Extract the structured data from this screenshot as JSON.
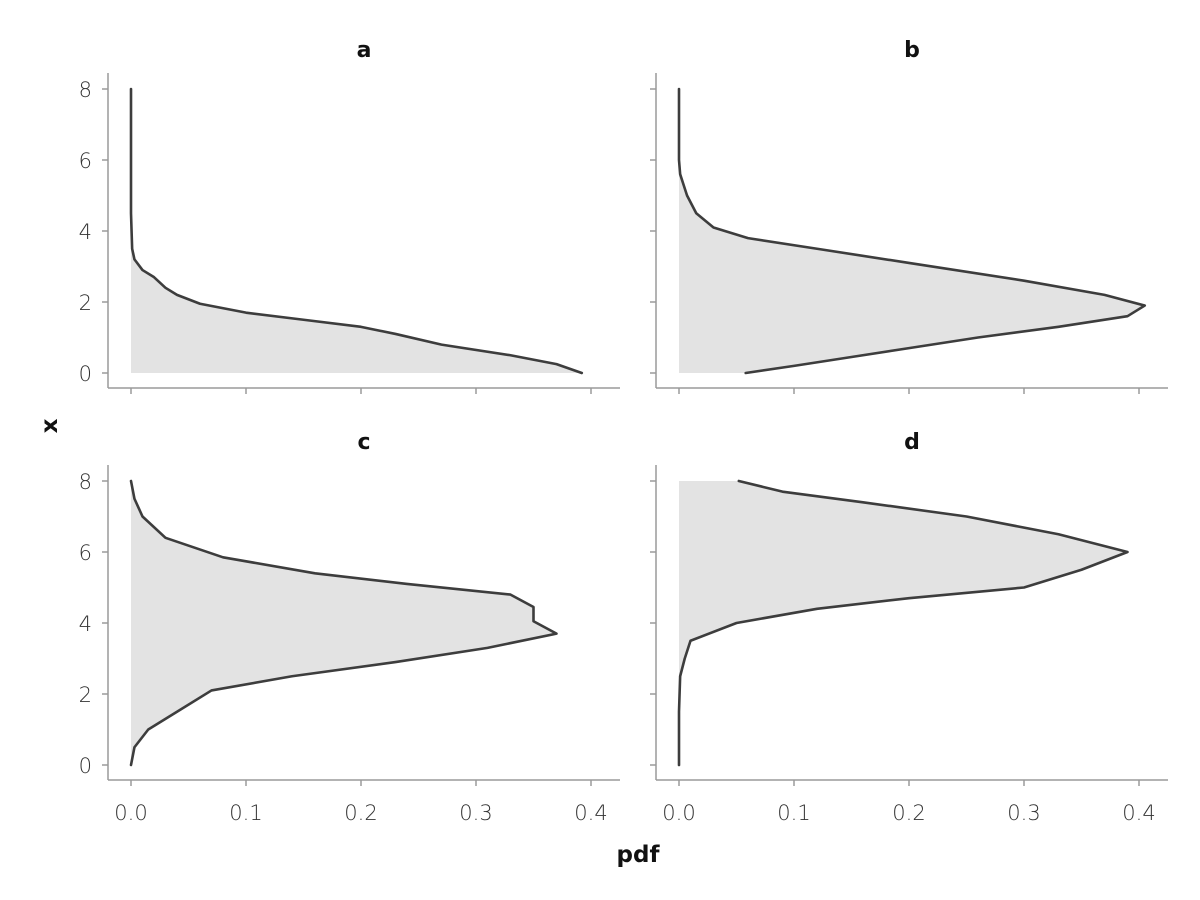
{
  "chart_data": {
    "type": "area",
    "orientation": "horizontal",
    "xlabel": "pdf",
    "ylabel": "x",
    "xlim": [
      0,
      0.4
    ],
    "ylim": [
      0,
      8
    ],
    "xticks": [
      "0.0",
      "0.1",
      "0.2",
      "0.3",
      "0.4"
    ],
    "yticks": [
      "0",
      "2",
      "4",
      "6",
      "8"
    ],
    "grid": false,
    "fill_color": "#e3e3e3",
    "line_color": "#3d3d3d",
    "panels": [
      {
        "title": "a",
        "points": [
          [
            0.392,
            0
          ],
          [
            0.37,
            0.25
          ],
          [
            0.33,
            0.5
          ],
          [
            0.27,
            0.8
          ],
          [
            0.23,
            1.1
          ],
          [
            0.2,
            1.3
          ],
          [
            0.15,
            1.5
          ],
          [
            0.1,
            1.7
          ],
          [
            0.06,
            1.95
          ],
          [
            0.04,
            2.2
          ],
          [
            0.03,
            2.4
          ],
          [
            0.02,
            2.7
          ],
          [
            0.01,
            2.9
          ],
          [
            0.003,
            3.2
          ],
          [
            0.001,
            3.5
          ],
          [
            0.0,
            4.5
          ],
          [
            0.0,
            6
          ],
          [
            0.0,
            8
          ]
        ]
      },
      {
        "title": "b",
        "points": [
          [
            0.058,
            0
          ],
          [
            0.1,
            0.2
          ],
          [
            0.15,
            0.45
          ],
          [
            0.2,
            0.7
          ],
          [
            0.26,
            1.0
          ],
          [
            0.33,
            1.3
          ],
          [
            0.39,
            1.6
          ],
          [
            0.405,
            1.9
          ],
          [
            0.37,
            2.2
          ],
          [
            0.3,
            2.6
          ],
          [
            0.2,
            3.1
          ],
          [
            0.12,
            3.5
          ],
          [
            0.06,
            3.8
          ],
          [
            0.03,
            4.1
          ],
          [
            0.015,
            4.5
          ],
          [
            0.007,
            5.0
          ],
          [
            0.004,
            5.3
          ],
          [
            0.001,
            5.6
          ],
          [
            0.0,
            6.0
          ],
          [
            0.0,
            8
          ]
        ]
      },
      {
        "title": "c",
        "points": [
          [
            0.0,
            0
          ],
          [
            0.003,
            0.5
          ],
          [
            0.015,
            1.0
          ],
          [
            0.04,
            1.5
          ],
          [
            0.07,
            2.1
          ],
          [
            0.14,
            2.5
          ],
          [
            0.23,
            2.9
          ],
          [
            0.31,
            3.3
          ],
          [
            0.37,
            3.7
          ],
          [
            0.35,
            4.05
          ],
          [
            0.35,
            4.45
          ],
          [
            0.33,
            4.8
          ],
          [
            0.24,
            5.1
          ],
          [
            0.16,
            5.4
          ],
          [
            0.08,
            5.85
          ],
          [
            0.03,
            6.4
          ],
          [
            0.01,
            7.0
          ],
          [
            0.003,
            7.5
          ],
          [
            0.0,
            8
          ]
        ]
      },
      {
        "title": "d",
        "points": [
          [
            0.0,
            0
          ],
          [
            0.0,
            1.5
          ],
          [
            0.001,
            2.5
          ],
          [
            0.005,
            3.0
          ],
          [
            0.01,
            3.5
          ],
          [
            0.05,
            4.0
          ],
          [
            0.12,
            4.4
          ],
          [
            0.2,
            4.7
          ],
          [
            0.3,
            5.0
          ],
          [
            0.35,
            5.5
          ],
          [
            0.39,
            6.0
          ],
          [
            0.33,
            6.5
          ],
          [
            0.25,
            7.0
          ],
          [
            0.16,
            7.4
          ],
          [
            0.09,
            7.7
          ],
          [
            0.052,
            8
          ]
        ]
      }
    ]
  }
}
